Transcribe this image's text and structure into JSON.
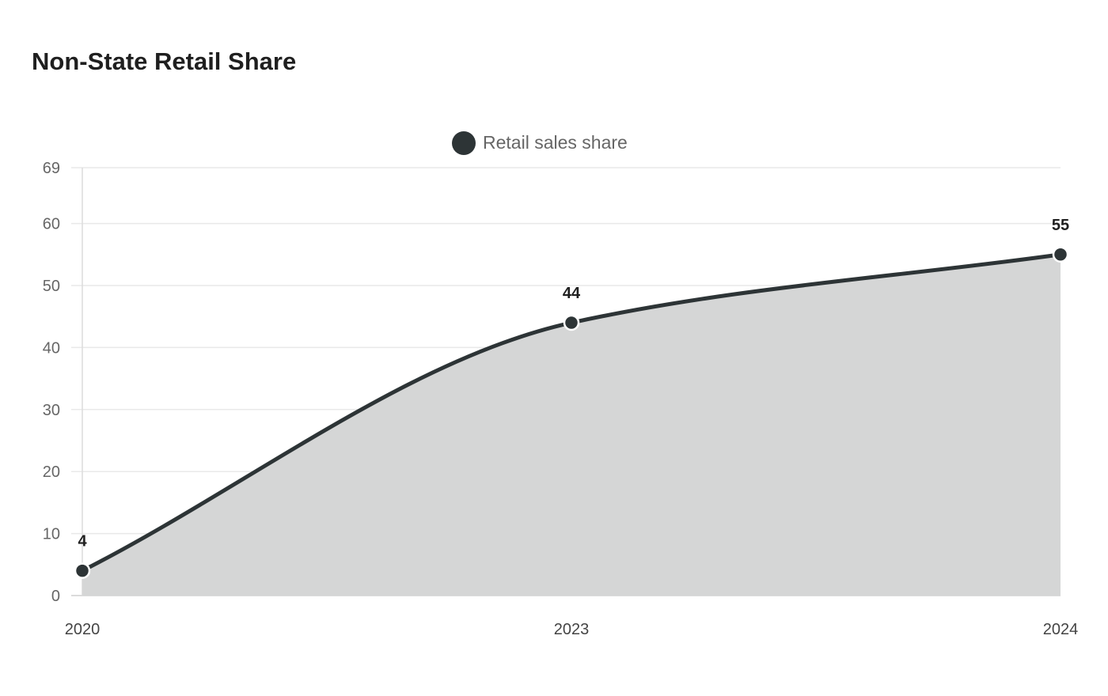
{
  "chart_data": {
    "type": "area",
    "title": "Non-State Retail Share",
    "categories": [
      "2020",
      "2023",
      "2024"
    ],
    "series": [
      {
        "name": "Retail sales share",
        "values": [
          4,
          44,
          55
        ],
        "color": "#2d3436",
        "fill_color": "#d5d6d6"
      }
    ],
    "yticks": [
      0,
      10,
      20,
      30,
      40,
      50,
      60,
      69
    ],
    "ylim": [
      0,
      69
    ],
    "xlabel": "",
    "ylabel": "",
    "grid": true,
    "legend_position": "top-center",
    "data_labels": true
  }
}
